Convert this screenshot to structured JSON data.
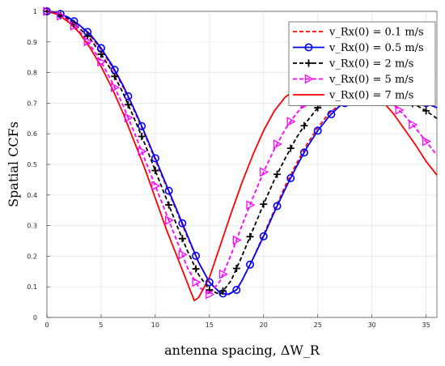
{
  "chart_data": {
    "type": "line",
    "title": "",
    "xlabel": "antenna spacing, ΔW_R",
    "ylabel": "Spatial CCFs",
    "xlim": [
      0,
      36
    ],
    "ylim": [
      0,
      1
    ],
    "xticks": [
      0,
      5,
      10,
      15,
      20,
      25,
      30,
      35
    ],
    "yticks": [
      0,
      0.1,
      0.2,
      0.3,
      0.4,
      0.5,
      0.6,
      0.7,
      0.8,
      0.9,
      1
    ],
    "grid": true,
    "legend_position": "top-right",
    "series": [
      {
        "name": "v_Rx(0) = 0.1 m/s",
        "color": "#ff0000",
        "style": "dashed",
        "marker": "none",
        "x": [
          0,
          1,
          2,
          3,
          4,
          5,
          6,
          7,
          8,
          9,
          10,
          11,
          12,
          13,
          14,
          15,
          16,
          16.8,
          17.5,
          18,
          19,
          20,
          21,
          22,
          23,
          24,
          25,
          26,
          27,
          28,
          29,
          30,
          31,
          32,
          33,
          34,
          35,
          36
        ],
        "y": [
          1,
          0.995,
          0.98,
          0.955,
          0.92,
          0.875,
          0.82,
          0.755,
          0.68,
          0.6,
          0.515,
          0.43,
          0.345,
          0.26,
          0.18,
          0.115,
          0.08,
          0.075,
          0.09,
          0.12,
          0.19,
          0.27,
          0.35,
          0.43,
          0.5,
          0.565,
          0.62,
          0.665,
          0.695,
          0.715,
          0.725,
          0.73,
          0.73,
          0.73,
          0.725,
          0.715,
          0.7,
          0.685
        ]
      },
      {
        "name": "v_Rx(0) = 0.5 m/s",
        "color": "#0000ff",
        "style": "solid",
        "marker": "circle",
        "x": [
          0,
          1,
          2,
          3,
          4,
          5,
          6,
          7,
          8,
          9,
          10,
          11,
          12,
          13,
          14,
          15,
          16,
          16.7,
          17.5,
          18,
          19,
          20,
          21,
          22,
          23,
          24,
          25,
          26,
          27,
          28,
          29,
          30,
          31,
          32,
          33,
          34,
          35,
          36
        ],
        "y": [
          1,
          0.995,
          0.98,
          0.955,
          0.925,
          0.88,
          0.825,
          0.76,
          0.685,
          0.605,
          0.52,
          0.435,
          0.35,
          0.265,
          0.18,
          0.115,
          0.08,
          0.075,
          0.09,
          0.12,
          0.19,
          0.265,
          0.345,
          0.42,
          0.49,
          0.555,
          0.61,
          0.655,
          0.69,
          0.71,
          0.72,
          0.725,
          0.725,
          0.725,
          0.72,
          0.71,
          0.7,
          0.685
        ]
      },
      {
        "name": "v_Rx(0) = 2 m/s",
        "color": "#000000",
        "style": "dashed",
        "marker": "plus",
        "x": [
          0,
          1,
          2,
          3,
          4,
          5,
          6,
          7,
          8,
          9,
          10,
          11,
          12,
          13,
          14,
          15,
          16,
          17,
          18,
          19,
          20,
          21,
          22,
          23,
          24,
          25,
          26,
          27,
          28,
          29,
          30,
          31,
          32,
          33,
          34,
          35,
          36
        ],
        "y": [
          1,
          0.99,
          0.975,
          0.945,
          0.91,
          0.86,
          0.805,
          0.735,
          0.655,
          0.57,
          0.48,
          0.39,
          0.3,
          0.215,
          0.14,
          0.09,
          0.075,
          0.12,
          0.2,
          0.285,
          0.37,
          0.45,
          0.52,
          0.585,
          0.64,
          0.685,
          0.715,
          0.73,
          0.735,
          0.735,
          0.73,
          0.725,
          0.72,
          0.71,
          0.695,
          0.675,
          0.65
        ]
      },
      {
        "name": "v_Rx(0) = 5 m/s",
        "color": "#ff00ff",
        "style": "dashed",
        "marker": "triangle-right",
        "x": [
          0,
          1,
          2,
          3,
          4,
          5,
          6,
          7,
          8,
          9,
          10,
          11,
          12,
          13,
          14,
          15,
          16,
          17,
          18,
          19,
          20,
          21,
          22,
          23,
          24,
          25,
          26,
          27,
          28,
          29,
          30,
          31,
          32,
          33,
          34,
          35,
          36
        ],
        "y": [
          1,
          0.99,
          0.97,
          0.935,
          0.89,
          0.835,
          0.77,
          0.695,
          0.61,
          0.52,
          0.43,
          0.34,
          0.25,
          0.16,
          0.1,
          0.075,
          0.12,
          0.205,
          0.3,
          0.39,
          0.475,
          0.55,
          0.615,
          0.665,
          0.705,
          0.73,
          0.74,
          0.745,
          0.745,
          0.74,
          0.735,
          0.72,
          0.695,
          0.66,
          0.62,
          0.575,
          0.53
        ]
      },
      {
        "name": "v_Rx(0) = 7 m/s",
        "color": "#ff0000",
        "style": "solid",
        "marker": "none",
        "x": [
          0,
          1,
          2,
          3,
          4,
          5,
          6,
          7,
          8,
          9,
          10,
          11,
          12,
          13,
          13.6,
          14,
          15,
          16,
          17,
          18,
          19,
          20,
          21,
          22,
          23,
          24,
          25,
          26,
          27,
          28,
          29,
          30,
          31,
          32,
          33,
          34,
          35,
          36
        ],
        "y": [
          1,
          0.99,
          0.965,
          0.93,
          0.88,
          0.82,
          0.75,
          0.67,
          0.58,
          0.49,
          0.39,
          0.29,
          0.2,
          0.11,
          0.055,
          0.065,
          0.13,
          0.235,
          0.34,
          0.44,
          0.53,
          0.61,
          0.675,
          0.72,
          0.745,
          0.755,
          0.755,
          0.755,
          0.755,
          0.755,
          0.75,
          0.735,
          0.705,
          0.665,
          0.615,
          0.565,
          0.51,
          0.465
        ]
      }
    ]
  }
}
